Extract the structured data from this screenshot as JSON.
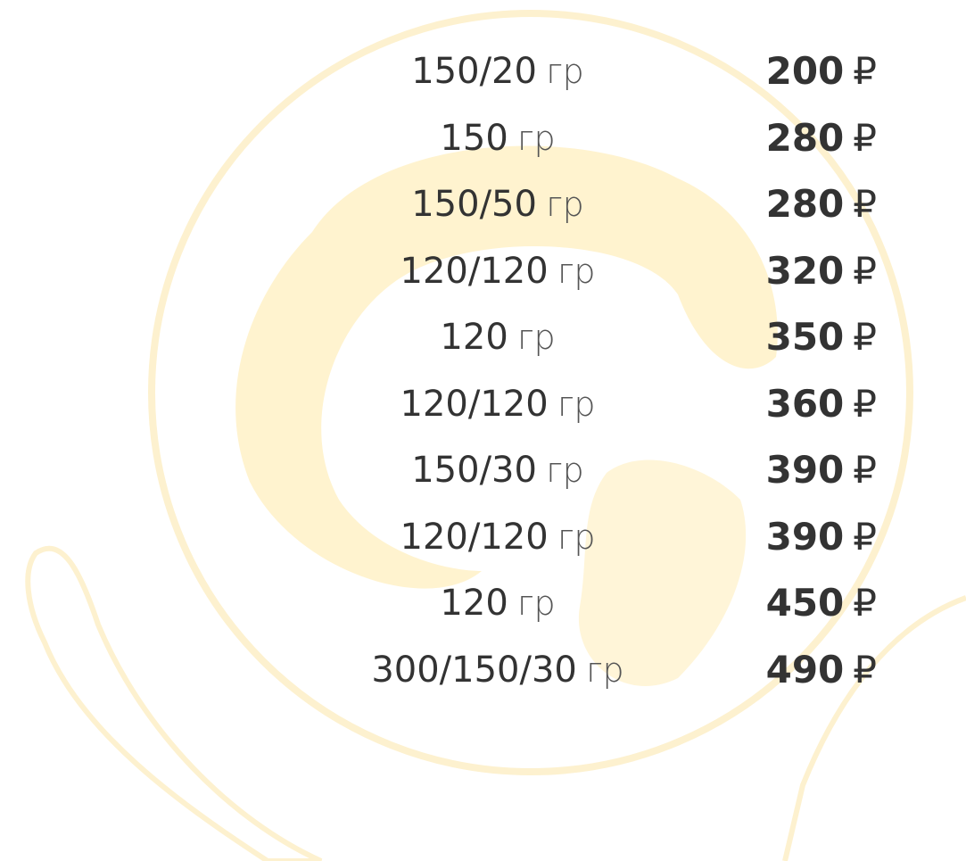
{
  "menu": {
    "rows": [
      {
        "weight": "150/20",
        "unit": "гр",
        "price": 200,
        "currency": "₽"
      },
      {
        "weight": "150",
        "unit": "гр",
        "price": 280,
        "currency": "₽"
      },
      {
        "weight": "150/50",
        "unit": "гр",
        "price": 280,
        "currency": "₽"
      },
      {
        "weight": "120/120",
        "unit": "гр",
        "price": 320,
        "currency": "₽"
      },
      {
        "weight": "120",
        "unit": "гр",
        "price": 350,
        "currency": "₽"
      },
      {
        "weight": "120/120",
        "unit": "гр",
        "price": 360,
        "currency": "₽"
      },
      {
        "weight": "150/30",
        "unit": "гр",
        "price": 390,
        "currency": "₽"
      },
      {
        "weight": "120/120",
        "unit": "гр",
        "price": 390,
        "currency": "₽"
      },
      {
        "weight": "120",
        "unit": "гр",
        "price": 450,
        "currency": "₽"
      },
      {
        "weight": "300/150/30",
        "unit": "гр",
        "price": 490,
        "currency": "₽"
      }
    ]
  }
}
